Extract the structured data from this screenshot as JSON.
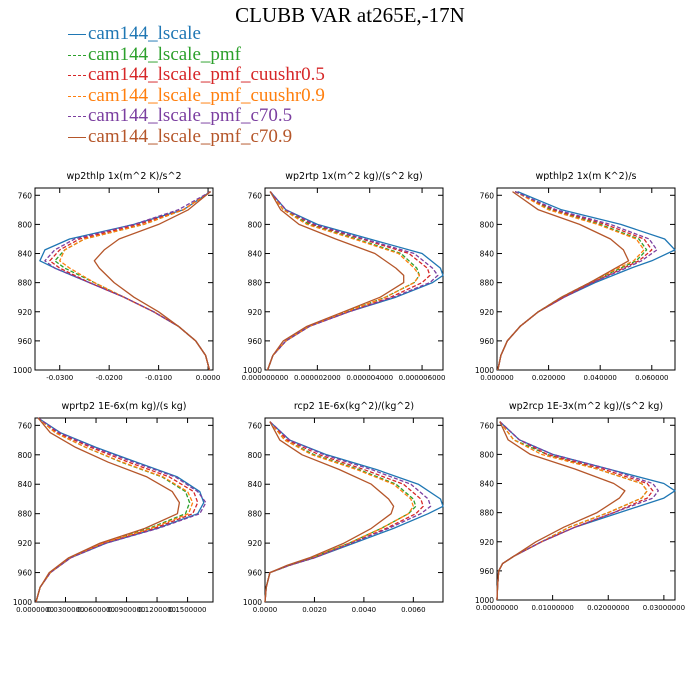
{
  "figure": {
    "title": "CLUBB VAR at265E,-17N"
  },
  "legend": [
    {
      "name": "cam144_lscale",
      "color": "#1f77b4",
      "dash": "solid"
    },
    {
      "name": "cam144_lscale_pmf",
      "color": "#2ca02c",
      "dash": "dashed"
    },
    {
      "name": "cam144_lscale_pmf_cuushr0.5",
      "color": "#d62728",
      "dash": "dashed"
    },
    {
      "name": "cam144_lscale_pmf_cuushr0.9",
      "color": "#ff7f0e",
      "dash": "dashed"
    },
    {
      "name": "cam144_lscale_pmf_c70.5",
      "color": "#7b3fa0",
      "dash": "dashed"
    },
    {
      "name": "cam144_lscale_pmf_c70.9",
      "color": "#b5562a",
      "dash": "solid"
    }
  ],
  "chart_data": [
    {
      "type": "line",
      "title": "wp2thlp  1x(m^2 K)/s^2",
      "xlim": [
        -0.035,
        0.001
      ],
      "xticks": [
        -0.03,
        -0.02,
        -0.01,
        0.0
      ],
      "xticklabels": [
        "-0.0300",
        "-0.0200",
        "-0.0100",
        "0.0000"
      ],
      "ylim": [
        1000,
        750
      ],
      "yticks": [
        760,
        800,
        840,
        880,
        920,
        960,
        1000
      ],
      "y": [
        755,
        780,
        800,
        820,
        835,
        850,
        860,
        880,
        900,
        920,
        940,
        960,
        980,
        1000
      ],
      "series": [
        {
          "name": "cam144_lscale",
          "values": [
            0.0005,
            -0.005,
            -0.015,
            -0.028,
            -0.033,
            -0.034,
            -0.031,
            -0.024,
            -0.017,
            -0.011,
            -0.006,
            -0.0025,
            -0.0005,
            0.0003
          ]
        },
        {
          "name": "cam144_lscale_pmf",
          "values": [
            0.0005,
            -0.005,
            -0.013,
            -0.025,
            -0.029,
            -0.031,
            -0.029,
            -0.023,
            -0.017,
            -0.011,
            -0.006,
            -0.0025,
            -0.0005,
            0.0003
          ]
        },
        {
          "name": "cam144_lscale_pmf_cuushr0.5",
          "values": [
            0.0005,
            -0.005,
            -0.014,
            -0.026,
            -0.03,
            -0.032,
            -0.03,
            -0.024,
            -0.017,
            -0.011,
            -0.006,
            -0.0025,
            -0.0005,
            0.0003
          ]
        },
        {
          "name": "cam144_lscale_pmf_cuushr0.9",
          "values": [
            0.0005,
            -0.005,
            -0.013,
            -0.025,
            -0.029,
            -0.03,
            -0.028,
            -0.023,
            -0.017,
            -0.011,
            -0.006,
            -0.0025,
            -0.0005,
            0.0003
          ]
        },
        {
          "name": "cam144_lscale_pmf_c70.5",
          "values": [
            0.0005,
            -0.006,
            -0.015,
            -0.027,
            -0.031,
            -0.033,
            -0.031,
            -0.024,
            -0.017,
            -0.011,
            -0.006,
            -0.0025,
            -0.0005,
            0.0003
          ]
        },
        {
          "name": "cam144_lscale_pmf_c70.9",
          "values": [
            0.0005,
            -0.004,
            -0.01,
            -0.018,
            -0.021,
            -0.023,
            -0.022,
            -0.019,
            -0.015,
            -0.01,
            -0.006,
            -0.0025,
            -0.0005,
            0.0003
          ]
        }
      ]
    },
    {
      "type": "line",
      "title": "wp2rtp  1x(m^2 kg)/(s^2 kg)",
      "xlim": [
        0.0,
        6.8e-06
      ],
      "xticks": [
        0.0,
        2e-06,
        4e-06,
        6e-06
      ],
      "xticklabels": [
        "0.000000000",
        "0.000002000",
        "0.000004000",
        "0.000006000"
      ],
      "ylim": [
        1000,
        750
      ],
      "yticks": [
        760,
        800,
        840,
        880,
        920,
        960,
        1000
      ],
      "y": [
        755,
        780,
        800,
        820,
        840,
        860,
        870,
        880,
        900,
        920,
        940,
        960,
        980,
        1000
      ],
      "series": [
        {
          "name": "cam144_lscale",
          "values": [
            2e-07,
            8e-07,
            2e-06,
            4e-06,
            6e-06,
            6.7e-06,
            6.8e-06,
            6.4e-06,
            5e-06,
            3.2e-06,
            1.7e-06,
            8e-07,
            3e-07,
            1e-07
          ]
        },
        {
          "name": "cam144_lscale_pmf",
          "values": [
            2e-07,
            7e-07,
            1.7e-06,
            3.5e-06,
            5.2e-06,
            5.8e-06,
            5.9e-06,
            5.7e-06,
            4.6e-06,
            3.1e-06,
            1.7e-06,
            8e-07,
            3e-07,
            1e-07
          ]
        },
        {
          "name": "cam144_lscale_pmf_cuushr0.5",
          "values": [
            2e-07,
            8e-07,
            1.8e-06,
            3.7e-06,
            5.5e-06,
            6.2e-06,
            6.3e-06,
            6e-06,
            4.8e-06,
            3.2e-06,
            1.7e-06,
            8e-07,
            3e-07,
            1e-07
          ]
        },
        {
          "name": "cam144_lscale_pmf_cuushr0.9",
          "values": [
            2e-07,
            7e-07,
            1.6e-06,
            3.4e-06,
            5.1e-06,
            5.7e-06,
            5.9e-06,
            5.7e-06,
            4.6e-06,
            3.1e-06,
            1.7e-06,
            8e-07,
            3e-07,
            1e-07
          ]
        },
        {
          "name": "cam144_lscale_pmf_c70.5",
          "values": [
            2e-07,
            8e-07,
            1.9e-06,
            3.8e-06,
            5.7e-06,
            6.4e-06,
            6.6e-06,
            6.3e-06,
            4.9e-06,
            3.2e-06,
            1.7e-06,
            8e-07,
            3e-07,
            1e-07
          ]
        },
        {
          "name": "cam144_lscale_pmf_c70.9",
          "values": [
            2e-07,
            6e-07,
            1.3e-06,
            2.7e-06,
            4.2e-06,
            5e-06,
            5.3e-06,
            5.3e-06,
            4.4e-06,
            3e-06,
            1.6e-06,
            7e-07,
            3e-07,
            1e-07
          ]
        }
      ]
    },
    {
      "type": "line",
      "title": "wpthlp2  1x(m K^2)/s",
      "xlim": [
        0.0,
        0.069
      ],
      "xticks": [
        0.0,
        0.02,
        0.04,
        0.06
      ],
      "xticklabels": [
        "0.000000",
        "0.020000",
        "0.040000",
        "0.060000"
      ],
      "ylim": [
        1000,
        750
      ],
      "yticks": [
        760,
        800,
        840,
        880,
        920,
        960,
        1000
      ],
      "y": [
        755,
        780,
        800,
        820,
        835,
        850,
        860,
        880,
        900,
        920,
        940,
        960,
        980,
        1000
      ],
      "series": [
        {
          "name": "cam144_lscale",
          "values": [
            0.008,
            0.025,
            0.048,
            0.065,
            0.069,
            0.06,
            0.052,
            0.038,
            0.026,
            0.016,
            0.009,
            0.004,
            0.0015,
            0.0003
          ]
        },
        {
          "name": "cam144_lscale_pmf",
          "values": [
            0.007,
            0.021,
            0.04,
            0.055,
            0.058,
            0.054,
            0.048,
            0.036,
            0.025,
            0.016,
            0.009,
            0.004,
            0.0015,
            0.0003
          ]
        },
        {
          "name": "cam144_lscale_pmf_cuushr0.5",
          "values": [
            0.007,
            0.022,
            0.042,
            0.057,
            0.06,
            0.055,
            0.049,
            0.037,
            0.026,
            0.016,
            0.009,
            0.004,
            0.0015,
            0.0003
          ]
        },
        {
          "name": "cam144_lscale_pmf_cuushr0.9",
          "values": [
            0.007,
            0.02,
            0.039,
            0.054,
            0.057,
            0.053,
            0.047,
            0.036,
            0.025,
            0.016,
            0.009,
            0.004,
            0.0015,
            0.0003
          ]
        },
        {
          "name": "cam144_lscale_pmf_c70.5",
          "values": [
            0.007,
            0.023,
            0.044,
            0.059,
            0.062,
            0.056,
            0.05,
            0.037,
            0.026,
            0.016,
            0.009,
            0.004,
            0.0015,
            0.0003
          ]
        },
        {
          "name": "cam144_lscale_pmf_c70.9",
          "values": [
            0.006,
            0.016,
            0.032,
            0.044,
            0.049,
            0.051,
            0.046,
            0.036,
            0.025,
            0.016,
            0.009,
            0.004,
            0.0015,
            0.0003
          ]
        }
      ]
    },
    {
      "type": "line",
      "title": "wprtp2  1E-6x(m kg)/(s kg)",
      "xlim": [
        0.0,
        0.175
      ],
      "xticks": [
        0.0,
        0.03,
        0.06,
        0.09,
        0.12,
        0.15
      ],
      "xticklabels": [
        "0.0000000",
        "0.0300000",
        "0.0600000",
        "0.0900000",
        "0.1200000",
        "0.1500000"
      ],
      "ylim": [
        1000,
        750
      ],
      "yticks": [
        760,
        800,
        840,
        880,
        920,
        960,
        1000
      ],
      "y": [
        750,
        770,
        790,
        810,
        830,
        850,
        865,
        880,
        900,
        920,
        940,
        960,
        980,
        1000
      ],
      "series": [
        {
          "name": "cam144_lscale",
          "values": [
            0.003,
            0.025,
            0.06,
            0.1,
            0.14,
            0.162,
            0.166,
            0.16,
            0.12,
            0.07,
            0.035,
            0.015,
            0.005,
            0.001
          ]
        },
        {
          "name": "cam144_lscale_pmf",
          "values": [
            0.003,
            0.02,
            0.05,
            0.085,
            0.125,
            0.148,
            0.152,
            0.148,
            0.112,
            0.066,
            0.034,
            0.015,
            0.005,
            0.001
          ]
        },
        {
          "name": "cam144_lscale_pmf_cuushr0.5",
          "values": [
            0.003,
            0.022,
            0.055,
            0.092,
            0.132,
            0.156,
            0.16,
            0.155,
            0.117,
            0.068,
            0.035,
            0.015,
            0.005,
            0.001
          ]
        },
        {
          "name": "cam144_lscale_pmf_cuushr0.9",
          "values": [
            0.003,
            0.02,
            0.05,
            0.086,
            0.126,
            0.15,
            0.155,
            0.151,
            0.114,
            0.067,
            0.034,
            0.015,
            0.005,
            0.001
          ]
        },
        {
          "name": "cam144_lscale_pmf_c70.5",
          "values": [
            0.003,
            0.024,
            0.058,
            0.097,
            0.138,
            0.16,
            0.168,
            0.162,
            0.121,
            0.07,
            0.035,
            0.015,
            0.005,
            0.001
          ]
        },
        {
          "name": "cam144_lscale_pmf_c70.9",
          "values": [
            0.003,
            0.015,
            0.04,
            0.072,
            0.11,
            0.135,
            0.142,
            0.14,
            0.108,
            0.064,
            0.033,
            0.014,
            0.005,
            0.001
          ]
        }
      ]
    },
    {
      "type": "line",
      "title": "rcp2  1E-6x(kg^2)/(kg^2)",
      "xlim": [
        0.0,
        0.0072
      ],
      "xticks": [
        0.0,
        0.002,
        0.004,
        0.006
      ],
      "xticklabels": [
        "0.0000",
        "0.0020",
        "0.0040",
        "0.0060"
      ],
      "ylim": [
        1000,
        750
      ],
      "yticks": [
        760,
        800,
        840,
        880,
        920,
        960,
        1000
      ],
      "y": [
        755,
        780,
        800,
        820,
        840,
        860,
        870,
        880,
        900,
        920,
        940,
        950,
        960,
        980,
        1000
      ],
      "series": [
        {
          "name": "cam144_lscale",
          "values": [
            0.0002,
            0.001,
            0.0025,
            0.0045,
            0.0062,
            0.0071,
            0.0072,
            0.0066,
            0.0052,
            0.0036,
            0.002,
            0.001,
            0.0002,
            5e-05,
            0.0
          ]
        },
        {
          "name": "cam144_lscale_pmf",
          "values": [
            0.0002,
            0.0008,
            0.002,
            0.0038,
            0.0053,
            0.006,
            0.0061,
            0.0058,
            0.0047,
            0.0034,
            0.0019,
            0.001,
            0.0002,
            5e-05,
            0.0
          ]
        },
        {
          "name": "cam144_lscale_pmf_cuushr0.5",
          "values": [
            0.0002,
            0.0009,
            0.0022,
            0.004,
            0.0056,
            0.0063,
            0.0064,
            0.0061,
            0.0049,
            0.0035,
            0.002,
            0.001,
            0.0002,
            5e-05,
            0.0
          ]
        },
        {
          "name": "cam144_lscale_pmf_cuushr0.9",
          "values": [
            0.0002,
            0.0008,
            0.0019,
            0.0037,
            0.0052,
            0.0059,
            0.006,
            0.0058,
            0.0047,
            0.0034,
            0.0019,
            0.001,
            0.0002,
            5e-05,
            0.0
          ]
        },
        {
          "name": "cam144_lscale_pmf_c70.5",
          "values": [
            0.0002,
            0.001,
            0.0024,
            0.0043,
            0.0059,
            0.0066,
            0.0067,
            0.0063,
            0.005,
            0.0035,
            0.002,
            0.001,
            0.0002,
            5e-05,
            0.0
          ]
        },
        {
          "name": "cam144_lscale_pmf_c70.9",
          "values": [
            0.0002,
            0.0006,
            0.0015,
            0.003,
            0.0043,
            0.005,
            0.0052,
            0.0051,
            0.0043,
            0.0032,
            0.0018,
            0.0009,
            0.0002,
            5e-05,
            0.0
          ]
        }
      ]
    },
    {
      "type": "line",
      "title": "wp2rcp  1E-3x(m^2 kg)/(s^2 kg)",
      "xlim": [
        0.0,
        0.032
      ],
      "xticks": [
        0.0,
        0.01,
        0.02,
        0.03
      ],
      "xticklabels": [
        "0.00000000",
        "0.01000000",
        "0.02000000",
        "0.03000000"
      ],
      "ylim": [
        1000,
        750
      ],
      "yticks": [
        760,
        800,
        840,
        880,
        920,
        960,
        1000
      ],
      "y": [
        755,
        780,
        800,
        820,
        840,
        850,
        860,
        880,
        900,
        920,
        940,
        950,
        960,
        980,
        1000
      ],
      "series": [
        {
          "name": "cam144_lscale",
          "values": [
            0.0005,
            0.004,
            0.01,
            0.02,
            0.03,
            0.032,
            0.03,
            0.022,
            0.014,
            0.008,
            0.003,
            0.001,
            0.0003,
            0.0001,
            0.0
          ]
        },
        {
          "name": "cam144_lscale_pmf",
          "values": [
            0.0005,
            0.003,
            0.009,
            0.018,
            0.026,
            0.027,
            0.026,
            0.02,
            0.013,
            0.008,
            0.003,
            0.001,
            0.0003,
            0.0001,
            0.0
          ]
        },
        {
          "name": "cam144_lscale_pmf_cuushr0.5",
          "values": [
            0.0005,
            0.004,
            0.009,
            0.019,
            0.027,
            0.028,
            0.027,
            0.021,
            0.014,
            0.008,
            0.003,
            0.001,
            0.0003,
            0.0001,
            0.0
          ]
        },
        {
          "name": "cam144_lscale_pmf_cuushr0.9",
          "values": [
            0.0005,
            0.003,
            0.008,
            0.018,
            0.026,
            0.027,
            0.026,
            0.02,
            0.013,
            0.008,
            0.003,
            0.001,
            0.0003,
            0.0001,
            0.0
          ]
        },
        {
          "name": "cam144_lscale_pmf_c70.5",
          "values": [
            0.0005,
            0.004,
            0.01,
            0.02,
            0.028,
            0.029,
            0.028,
            0.021,
            0.014,
            0.008,
            0.003,
            0.001,
            0.0003,
            0.0001,
            0.0
          ]
        },
        {
          "name": "cam144_lscale_pmf_c70.9",
          "values": [
            0.0005,
            0.002,
            0.006,
            0.014,
            0.021,
            0.023,
            0.022,
            0.018,
            0.012,
            0.007,
            0.003,
            0.001,
            0.0003,
            0.0001,
            0.0
          ]
        }
      ]
    }
  ]
}
